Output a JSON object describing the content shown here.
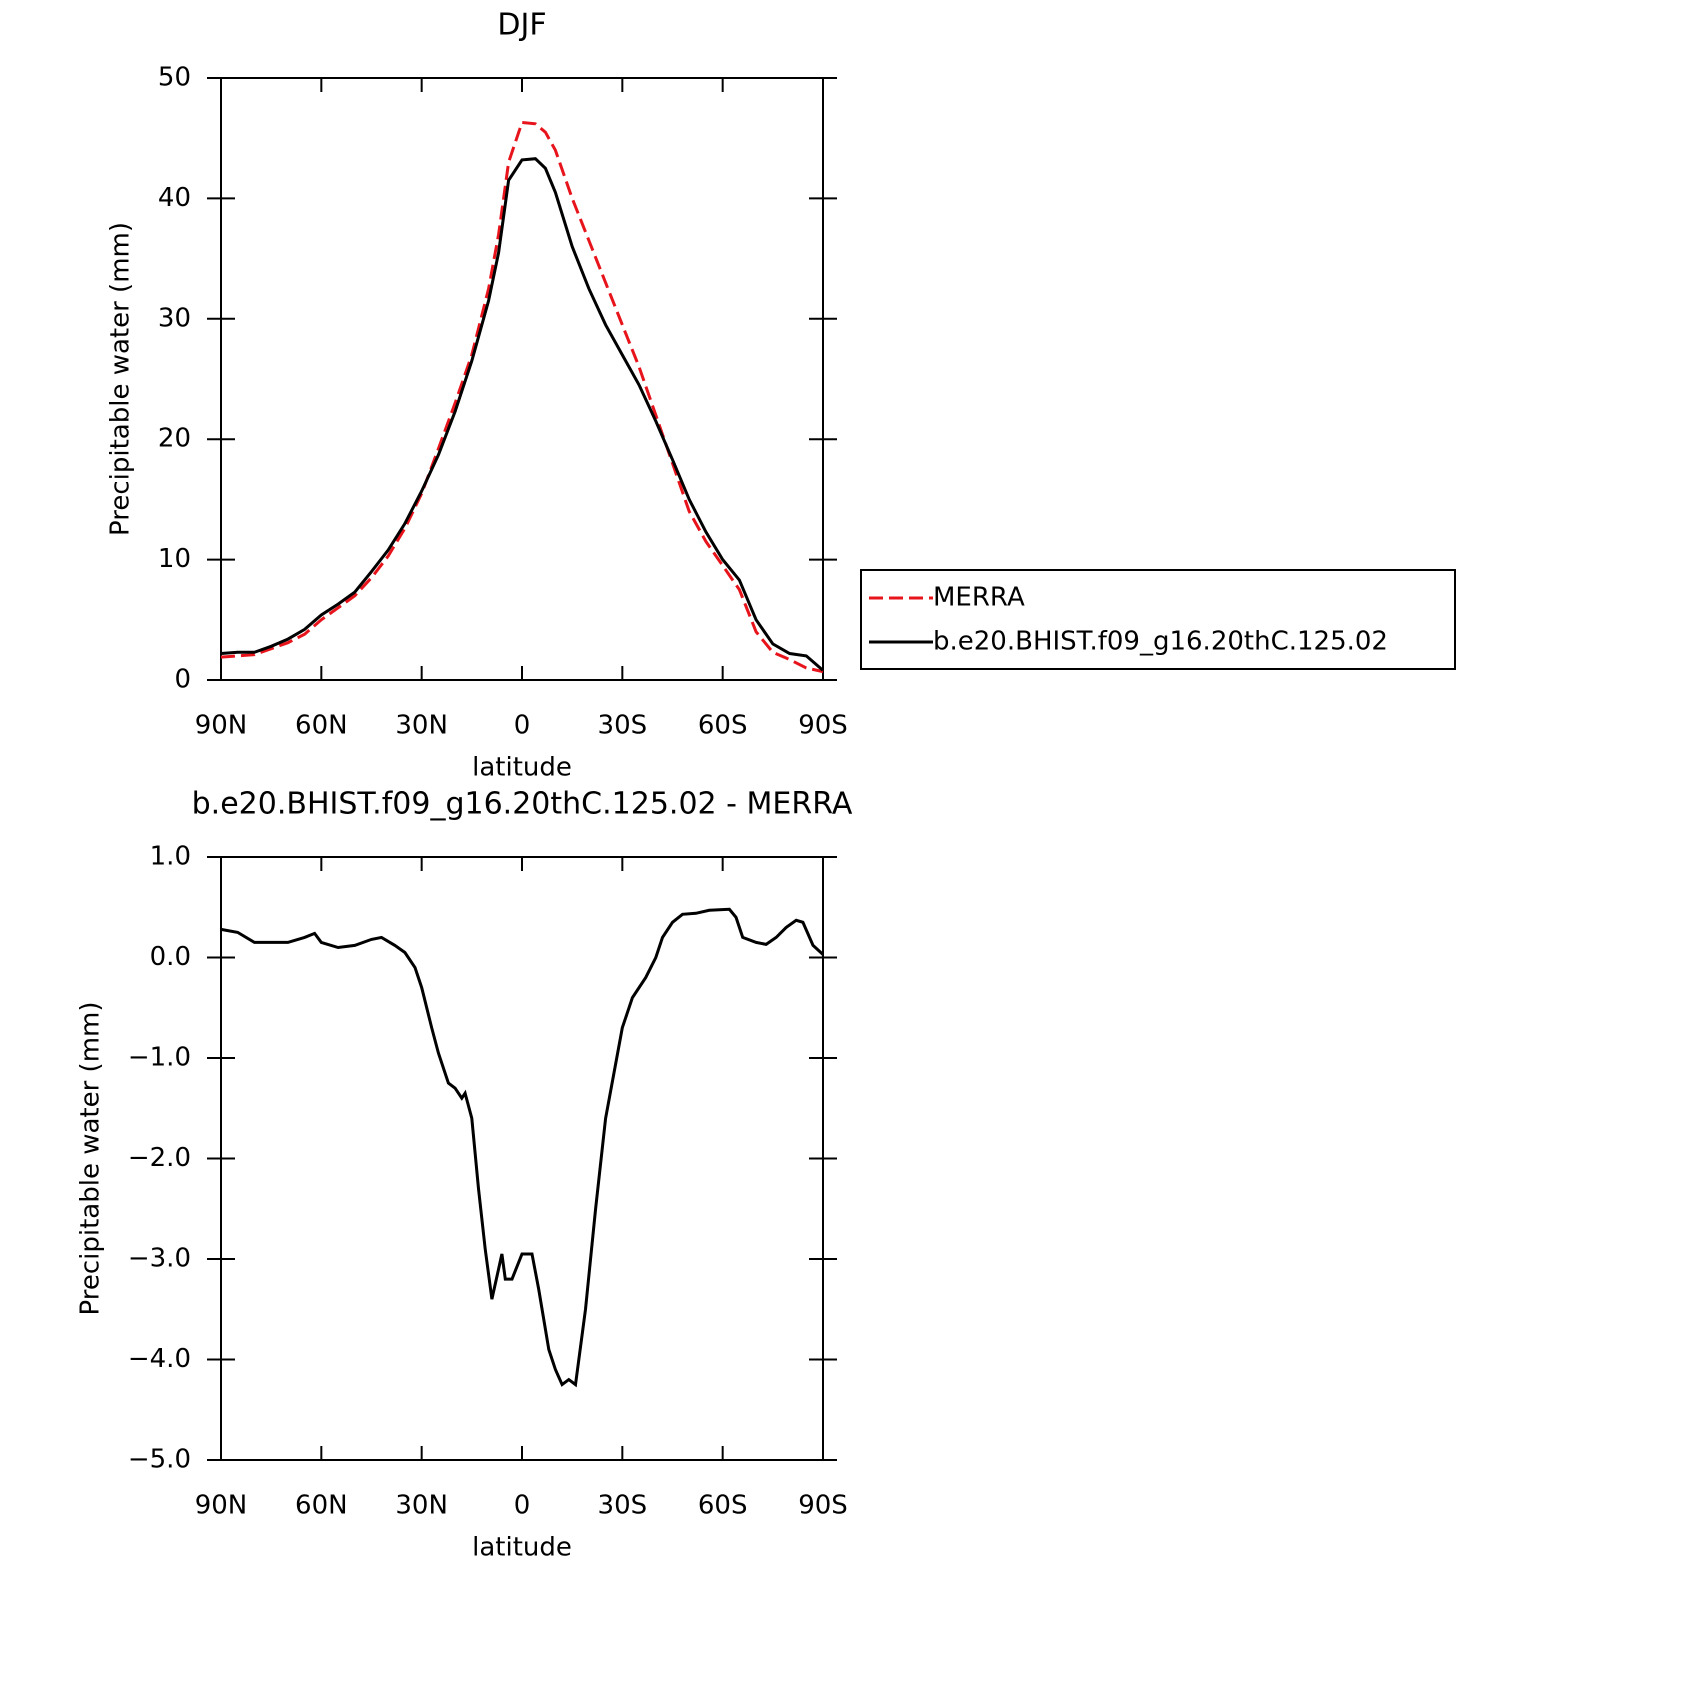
{
  "chart_data": [
    {
      "type": "line",
      "title": "DJF",
      "xlabel": "latitude",
      "ylabel": "Precipitable water (mm)",
      "x": [
        90,
        85,
        80,
        75,
        70,
        65,
        60,
        55,
        50,
        45,
        40,
        35,
        30,
        25,
        20,
        15,
        10,
        7,
        4,
        0,
        -4,
        -7,
        -10,
        -15,
        -20,
        -25,
        -30,
        -35,
        -40,
        -45,
        -50,
        -55,
        -60,
        -65,
        -70,
        -75,
        -80,
        -85,
        -90
      ],
      "series": [
        {
          "name": "MERRA",
          "color": "#e8141c",
          "dash": true,
          "values": [
            1.9,
            2.0,
            2.1,
            2.6,
            3.1,
            3.8,
            5.0,
            6.0,
            7.0,
            8.5,
            10.3,
            12.6,
            15.5,
            19.2,
            23.0,
            27.0,
            32.5,
            37,
            43,
            46.3,
            46.2,
            45.5,
            44,
            40,
            36.5,
            33,
            29.5,
            26,
            22,
            18,
            14,
            11.5,
            9.5,
            7.5,
            4,
            2.3,
            1.7,
            1.0,
            0.7
          ]
        },
        {
          "name": "b.e20.BHIST.f09_g16.20thC.125.02",
          "color": "#000000",
          "dash": false,
          "values": [
            2.2,
            2.3,
            2.3,
            2.8,
            3.4,
            4.2,
            5.4,
            6.3,
            7.3,
            9.0,
            10.8,
            13.0,
            15.7,
            18.7,
            22.3,
            26.5,
            31.5,
            35.5,
            41.5,
            43.2,
            43.3,
            42.5,
            40.5,
            36,
            32.5,
            29.5,
            27,
            24.5,
            21.5,
            18.3,
            15,
            12.3,
            10,
            8.3,
            5,
            3,
            2.2,
            2.0,
            0.8
          ]
        }
      ],
      "xlim": [
        90,
        -90
      ],
      "xticks": [
        {
          "value": 90,
          "label": "90N"
        },
        {
          "value": 60,
          "label": "60N"
        },
        {
          "value": 30,
          "label": "30N"
        },
        0,
        {
          "value": -30,
          "label": "30S"
        },
        {
          "value": -60,
          "label": "60S"
        },
        {
          "value": -90,
          "label": "90S"
        }
      ],
      "ylim": [
        0,
        50
      ],
      "yticks": [
        0,
        10,
        20,
        30,
        40,
        50
      ],
      "legend": "right"
    },
    {
      "type": "line",
      "title": "b.e20.BHIST.f09_g16.20thC.125.02 - MERRA",
      "xlabel": "latitude",
      "ylabel": "Precipitable water (mm)",
      "x": [
        90,
        85,
        80,
        75,
        70,
        65,
        62,
        60,
        55,
        50,
        45,
        42,
        38,
        35,
        32,
        30,
        27,
        25,
        22,
        20,
        18,
        17,
        15,
        13,
        11,
        9,
        6,
        5,
        3,
        0,
        -3,
        -5,
        -8,
        -10,
        -12,
        -14,
        -16,
        -19,
        -22,
        -25,
        -30,
        -33,
        -37,
        -40,
        -42,
        -45,
        -48,
        -52,
        -56,
        -62,
        -64,
        -66,
        -70,
        -73,
        -76,
        -79,
        -82,
        -84,
        -87,
        -90
      ],
      "series": [
        {
          "name": "b.e20.BHIST.f09_g16.20thC.125.02 - MERRA",
          "color": "#000000",
          "dash": false,
          "values": [
            0.28,
            0.25,
            0.15,
            0.15,
            0.15,
            0.2,
            0.24,
            0.15,
            0.1,
            0.12,
            0.18,
            0.2,
            0.12,
            0.05,
            -0.1,
            -0.3,
            -0.7,
            -0.95,
            -1.25,
            -1.3,
            -1.4,
            -1.35,
            -1.6,
            -2.3,
            -2.9,
            -3.4,
            -2.95,
            -3.2,
            -3.2,
            -2.95,
            -2.95,
            -3.3,
            -3.9,
            -4.1,
            -4.25,
            -4.2,
            -4.25,
            -3.5,
            -2.5,
            -1.6,
            -0.7,
            -0.4,
            -0.2,
            0.0,
            0.2,
            0.35,
            0.43,
            0.44,
            0.47,
            0.48,
            0.4,
            0.2,
            0.15,
            0.13,
            0.2,
            0.3,
            0.37,
            0.35,
            0.12,
            0.03
          ]
        }
      ],
      "xlim": [
        90,
        -90
      ],
      "xticks": [
        {
          "value": 90,
          "label": "90N"
        },
        {
          "value": 60,
          "label": "60N"
        },
        {
          "value": 30,
          "label": "30N"
        },
        0,
        {
          "value": -30,
          "label": "30S"
        },
        {
          "value": -60,
          "label": "60S"
        },
        {
          "value": -90,
          "label": "90S"
        }
      ],
      "ylim": [
        -5,
        1
      ],
      "yticks": [
        {
          "value": -5,
          "label": "−5.0"
        },
        {
          "value": -4,
          "label": "−4.0"
        },
        {
          "value": -3,
          "label": "−3.0"
        },
        {
          "value": -2,
          "label": "−2.0"
        },
        {
          "value": -1,
          "label": "−1.0"
        },
        {
          "value": 0,
          "label": "0.0"
        },
        {
          "value": 1,
          "label": "1.0"
        }
      ]
    }
  ]
}
